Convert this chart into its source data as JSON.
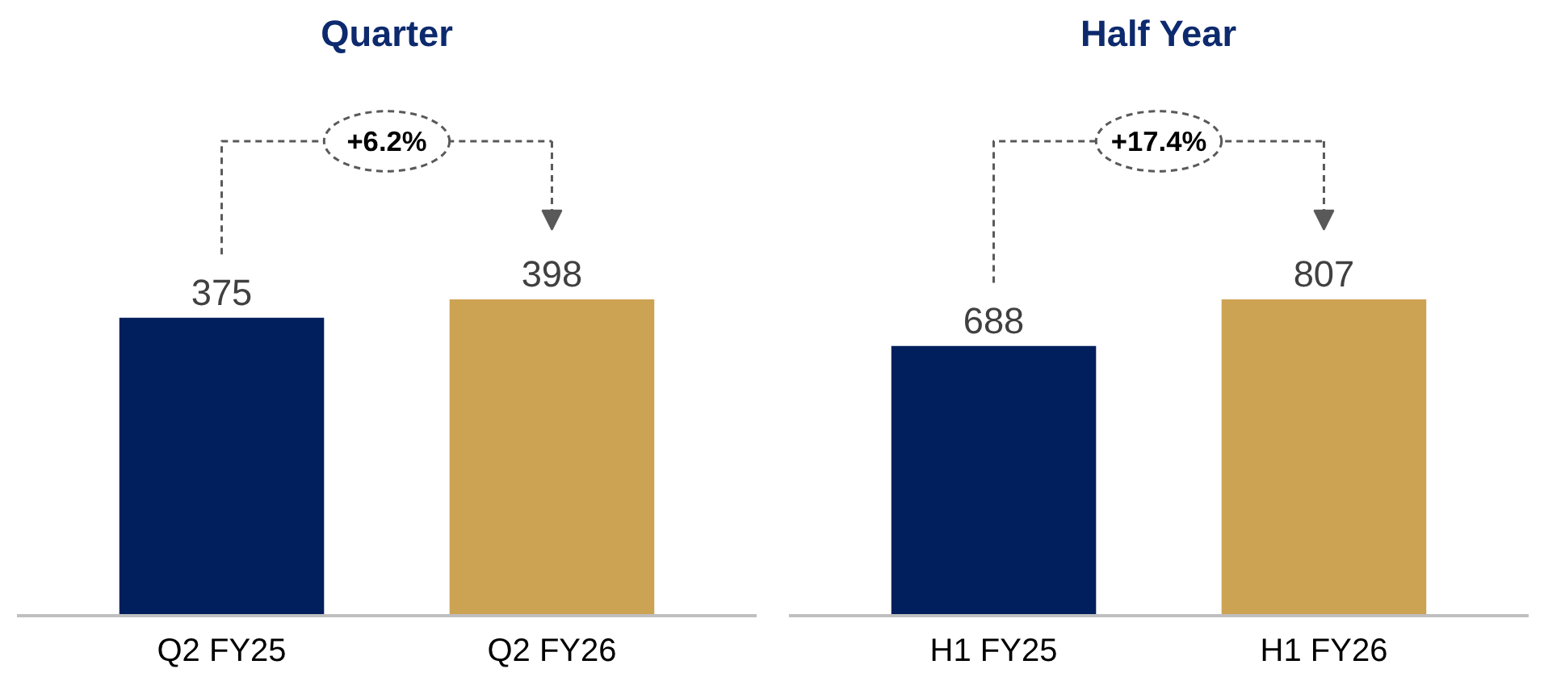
{
  "chart_data": [
    {
      "type": "bar",
      "title": "Quarter",
      "categories": [
        "Q2 FY25",
        "Q2 FY26"
      ],
      "values": [
        375,
        398
      ],
      "colors": [
        "#001f5c",
        "#cca253"
      ],
      "data_labels": true,
      "annotations": [
        "+6.2%"
      ]
    },
    {
      "type": "bar",
      "title": "Half Year",
      "categories": [
        "H1 FY25",
        "H1 FY26"
      ],
      "values": [
        688,
        807
      ],
      "colors": [
        "#001f5c",
        "#cca253"
      ],
      "data_labels": true,
      "annotations": [
        "+17.4%"
      ]
    }
  ]
}
